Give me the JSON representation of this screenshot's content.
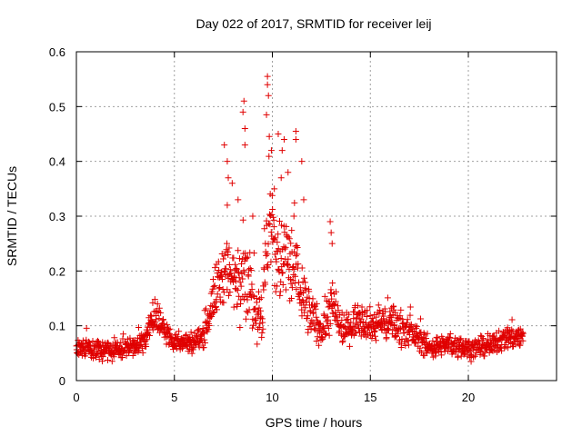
{
  "chart_data": {
    "type": "scatter",
    "title": "Day 022 of 2017, SRMTID for receiver leij",
    "xlabel": "GPS time / hours",
    "ylabel": "SRMTID / TECUs",
    "xlim": [
      0,
      24.5
    ],
    "ylim": [
      0,
      0.6
    ],
    "xticks": [
      0,
      5,
      10,
      15,
      20
    ],
    "yticks": [
      0,
      0.1,
      0.2,
      0.3,
      0.4,
      0.5,
      0.6
    ],
    "xtick_labels": [
      "0",
      "5",
      "10",
      "15",
      "20"
    ],
    "ytick_labels": [
      "0",
      "0.1",
      "0.2",
      "0.3",
      "0.4",
      "0.5",
      "0.6"
    ],
    "grid": true,
    "marker": "plus",
    "color": "#e00000",
    "series": [
      {
        "name": "SRMTID",
        "x_range": [
          0.0,
          22.8
        ],
        "profile": [
          [
            0.0,
            0.06,
            0.02
          ],
          [
            1.0,
            0.055,
            0.02
          ],
          [
            2.0,
            0.055,
            0.02
          ],
          [
            3.0,
            0.065,
            0.02
          ],
          [
            3.5,
            0.075,
            0.025
          ],
          [
            4.0,
            0.12,
            0.03
          ],
          [
            4.5,
            0.09,
            0.025
          ],
          [
            5.0,
            0.07,
            0.02
          ],
          [
            6.0,
            0.07,
            0.02
          ],
          [
            6.5,
            0.085,
            0.025
          ],
          [
            7.0,
            0.15,
            0.05
          ],
          [
            7.5,
            0.2,
            0.07
          ],
          [
            8.0,
            0.18,
            0.08
          ],
          [
            8.5,
            0.22,
            0.1
          ],
          [
            9.0,
            0.14,
            0.06
          ],
          [
            9.5,
            0.12,
            0.06
          ],
          [
            9.8,
            0.3,
            0.15
          ],
          [
            10.2,
            0.22,
            0.1
          ],
          [
            10.7,
            0.22,
            0.1
          ],
          [
            11.2,
            0.2,
            0.09
          ],
          [
            11.8,
            0.13,
            0.05
          ],
          [
            12.5,
            0.09,
            0.03
          ],
          [
            13.0,
            0.14,
            0.06
          ],
          [
            13.5,
            0.09,
            0.03
          ],
          [
            14.0,
            0.1,
            0.03
          ],
          [
            14.5,
            0.12,
            0.04
          ],
          [
            15.0,
            0.1,
            0.03
          ],
          [
            16.0,
            0.11,
            0.04
          ],
          [
            17.0,
            0.09,
            0.03
          ],
          [
            18.0,
            0.06,
            0.02
          ],
          [
            19.0,
            0.065,
            0.02
          ],
          [
            20.0,
            0.06,
            0.02
          ],
          [
            21.0,
            0.06,
            0.02
          ],
          [
            22.0,
            0.08,
            0.025
          ],
          [
            22.8,
            0.08,
            0.025
          ]
        ],
        "sample_count": 1400,
        "peaks": [
          {
            "x": 8.55,
            "y": 0.51
          },
          {
            "x": 8.5,
            "y": 0.49
          },
          {
            "x": 8.6,
            "y": 0.46
          },
          {
            "x": 7.55,
            "y": 0.43
          },
          {
            "x": 8.6,
            "y": 0.43
          },
          {
            "x": 9.75,
            "y": 0.555
          },
          {
            "x": 9.75,
            "y": 0.54
          },
          {
            "x": 9.8,
            "y": 0.52
          },
          {
            "x": 9.7,
            "y": 0.485
          },
          {
            "x": 10.3,
            "y": 0.45
          },
          {
            "x": 10.6,
            "y": 0.44
          },
          {
            "x": 11.2,
            "y": 0.455
          },
          {
            "x": 11.2,
            "y": 0.44
          },
          {
            "x": 9.95,
            "y": 0.42
          },
          {
            "x": 10.5,
            "y": 0.42
          },
          {
            "x": 10.45,
            "y": 0.37
          },
          {
            "x": 11.5,
            "y": 0.4
          },
          {
            "x": 7.7,
            "y": 0.4
          },
          {
            "x": 7.75,
            "y": 0.37
          },
          {
            "x": 7.7,
            "y": 0.32
          },
          {
            "x": 12.95,
            "y": 0.29
          },
          {
            "x": 13.0,
            "y": 0.27
          },
          {
            "x": 10.8,
            "y": 0.38
          },
          {
            "x": 10.1,
            "y": 0.35
          },
          {
            "x": 11.6,
            "y": 0.33
          },
          {
            "x": 11.1,
            "y": 0.3
          },
          {
            "x": 13.05,
            "y": 0.25
          },
          {
            "x": 8.25,
            "y": 0.33
          },
          {
            "x": 9.0,
            "y": 0.3
          },
          {
            "x": 7.95,
            "y": 0.36
          }
        ]
      }
    ]
  }
}
